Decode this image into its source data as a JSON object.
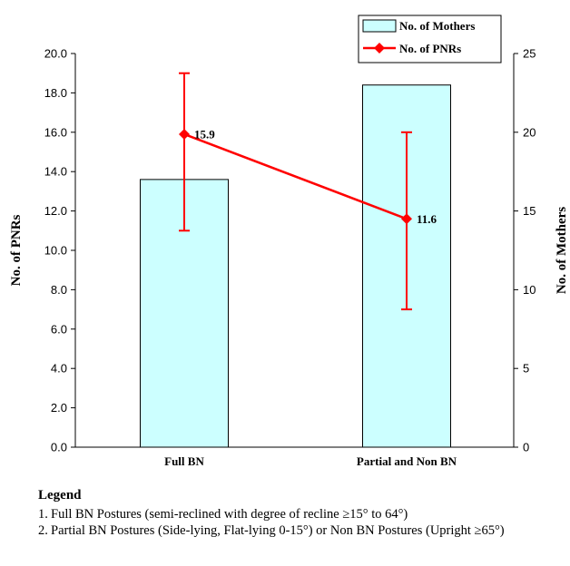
{
  "chart_data": {
    "type": "bar+line",
    "categories": [
      "Full BN",
      "Partial and Non BN"
    ],
    "bars": {
      "name": "No. of Mothers",
      "axis": "right",
      "values": [
        17,
        23
      ],
      "color": "#ccffff",
      "edge": "#000000"
    },
    "line": {
      "name": "No. of PNRs",
      "axis": "left",
      "values": [
        15.9,
        11.6
      ],
      "error_low": [
        11.0,
        7.0
      ],
      "error_high": [
        19.0,
        16.0
      ],
      "labels": [
        "15.9",
        "11.6"
      ],
      "color": "#ff0000"
    },
    "y_left": {
      "label": "No. of PNRs",
      "lim": [
        0,
        20
      ],
      "ticks": [
        "0.0",
        "2.0",
        "4.0",
        "6.0",
        "8.0",
        "10.0",
        "12.0",
        "14.0",
        "16.0",
        "18.0",
        "20.0"
      ]
    },
    "y_right": {
      "label": "No. of Mothers",
      "lim": [
        0,
        25
      ],
      "ticks": [
        "0",
        "5",
        "10",
        "15",
        "20",
        "25"
      ]
    },
    "legend_position": "top-right",
    "grid": false
  },
  "legend_notes": {
    "heading": "Legend",
    "items": [
      {
        "num": "1.",
        "text": "Full BN Postures (semi-reclined with degree of recline ≥15° to 64°)"
      },
      {
        "num": "2.",
        "text": "Partial BN Postures (Side-lying, Flat-lying 0-15°) or Non BN Postures (Upright ≥65°)"
      }
    ]
  }
}
